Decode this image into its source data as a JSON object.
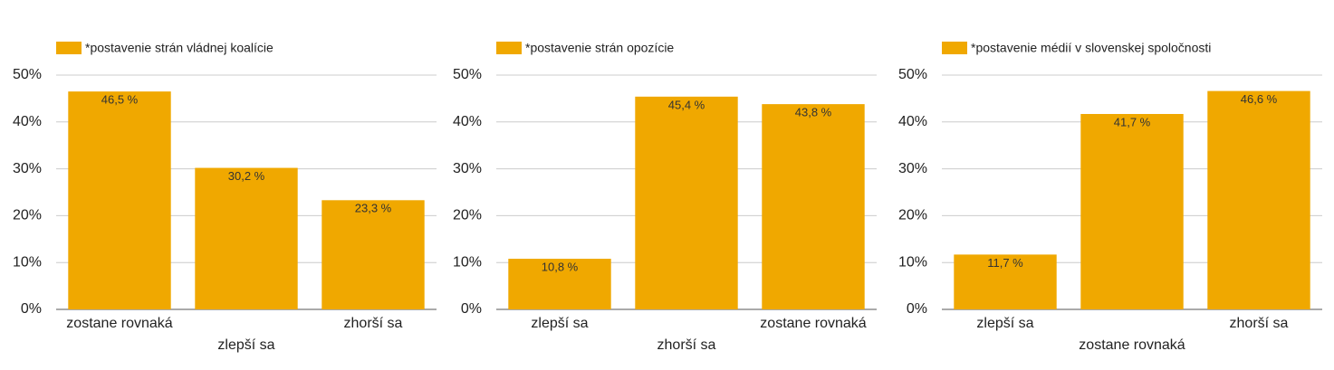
{
  "chart_data": [
    {
      "type": "bar",
      "categories": [
        "zostane rovnaká",
        "zlepší sa",
        "zhorší sa"
      ],
      "series": [
        {
          "name": "*postavenie strán vládnej koalície",
          "color": "#f0a800",
          "values": [
            46.5,
            30.2,
            23.3
          ],
          "value_labels": [
            "46,5 %",
            "30,2 %",
            "23,3 %"
          ]
        }
      ],
      "ylim": [
        0,
        50
      ],
      "yticks": [
        {
          "value": 0,
          "label": "0%"
        },
        {
          "value": 10,
          "label": "10%"
        },
        {
          "value": 20,
          "label": "20%"
        },
        {
          "value": 30,
          "label": "30%"
        },
        {
          "value": 40,
          "label": "40%"
        },
        {
          "value": 50,
          "label": "50%"
        }
      ],
      "grid": true
    },
    {
      "type": "bar",
      "categories": [
        "zlepší sa",
        "zhorší sa",
        "zostane rovnaká"
      ],
      "series": [
        {
          "name": "*postavenie strán opozície",
          "color": "#f0a800",
          "values": [
            10.8,
            45.4,
            43.8
          ],
          "value_labels": [
            "10,8 %",
            "45,4 %",
            "43,8 %"
          ]
        }
      ],
      "ylim": [
        0,
        50
      ],
      "yticks": [
        {
          "value": 0,
          "label": "0%"
        },
        {
          "value": 10,
          "label": "10%"
        },
        {
          "value": 20,
          "label": "20%"
        },
        {
          "value": 30,
          "label": "30%"
        },
        {
          "value": 40,
          "label": "40%"
        },
        {
          "value": 50,
          "label": "50%"
        }
      ],
      "grid": true
    },
    {
      "type": "bar",
      "categories": [
        "zlepší sa",
        "zostane rovnaká",
        "zhorší sa"
      ],
      "series": [
        {
          "name": "*postavenie médií v slovenskej spoločnosti",
          "color": "#f0a800",
          "values": [
            11.7,
            41.7,
            46.6
          ],
          "value_labels": [
            "11,7 %",
            "41,7 %",
            "46,6 %"
          ]
        }
      ],
      "ylim": [
        0,
        50
      ],
      "yticks": [
        {
          "value": 0,
          "label": "0%"
        },
        {
          "value": 10,
          "label": "10%"
        },
        {
          "value": 20,
          "label": "20%"
        },
        {
          "value": 30,
          "label": "30%"
        },
        {
          "value": 40,
          "label": "40%"
        },
        {
          "value": 50,
          "label": "50%"
        }
      ],
      "grid": true
    }
  ]
}
